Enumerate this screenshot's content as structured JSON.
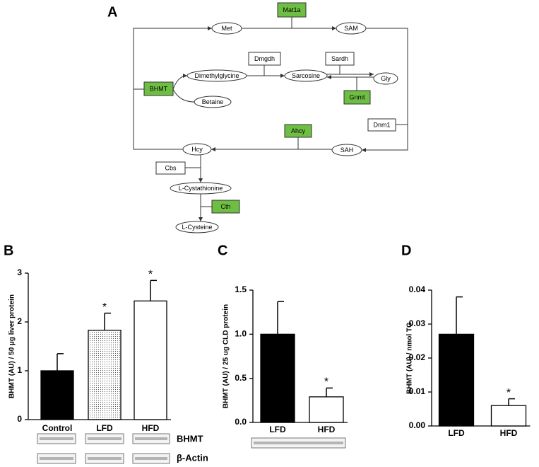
{
  "diagram": {
    "panel_label": "A",
    "nodes": [
      "Mat1a",
      "Met",
      "SAM",
      "Dmgdh",
      "Sardh",
      "Dimethylglycine",
      "Sarcosine",
      "Gly",
      "BHMT",
      "Betaine",
      "Gnmt",
      "Dnm1",
      "Ahcy",
      "Hcy",
      "SAH",
      "Cbs",
      "L-Cystathionine",
      "Cth",
      "L-Cysteine"
    ]
  },
  "chart_data": [
    {
      "type": "bar",
      "panel_label": "B",
      "y_label": "BHMT (AU) / 50 µg liver protein",
      "categories": [
        "Control",
        "LFD",
        "HFD"
      ],
      "values": [
        1.0,
        1.83,
        2.43
      ],
      "errors": [
        0.35,
        0.35,
        0.42
      ],
      "significance": [
        null,
        "*",
        "*"
      ],
      "colors": [
        "#000000",
        "#ffffff",
        "#ffffff"
      ],
      "patterns": [
        null,
        "dots",
        null
      ],
      "ylim": [
        0,
        3
      ],
      "yticks": [
        0,
        1,
        2,
        3
      ],
      "blot_labels": [
        "BHMT",
        "β-Actin"
      ]
    },
    {
      "type": "bar",
      "panel_label": "C",
      "y_label": "BHMT (AU) / 25 ug CLD protein",
      "categories": [
        "LFD",
        "HFD"
      ],
      "values": [
        1.0,
        0.29
      ],
      "errors": [
        0.37,
        0.1
      ],
      "significance": [
        null,
        "*"
      ],
      "colors": [
        "#000000",
        "#ffffff"
      ],
      "ylim": [
        0,
        1.5
      ],
      "yticks": [
        {
          "value": 0,
          "label": "0.0"
        },
        0.5,
        {
          "value": 1,
          "label": "1.0"
        },
        1.5
      ]
    },
    {
      "type": "bar",
      "panel_label": "D",
      "y_label": "BHMT (AU) / nmol TG",
      "categories": [
        "LFD",
        "HFD"
      ],
      "values": [
        0.027,
        0.006
      ],
      "errors": [
        0.011,
        0.002
      ],
      "significance": [
        null,
        "*"
      ],
      "colors": [
        "#000000",
        "#ffffff"
      ],
      "ylim": [
        0,
        0.04
      ],
      "yticks": [
        {
          "value": 0,
          "label": "0.00"
        },
        0.01,
        0.02,
        0.03,
        0.04
      ]
    }
  ]
}
